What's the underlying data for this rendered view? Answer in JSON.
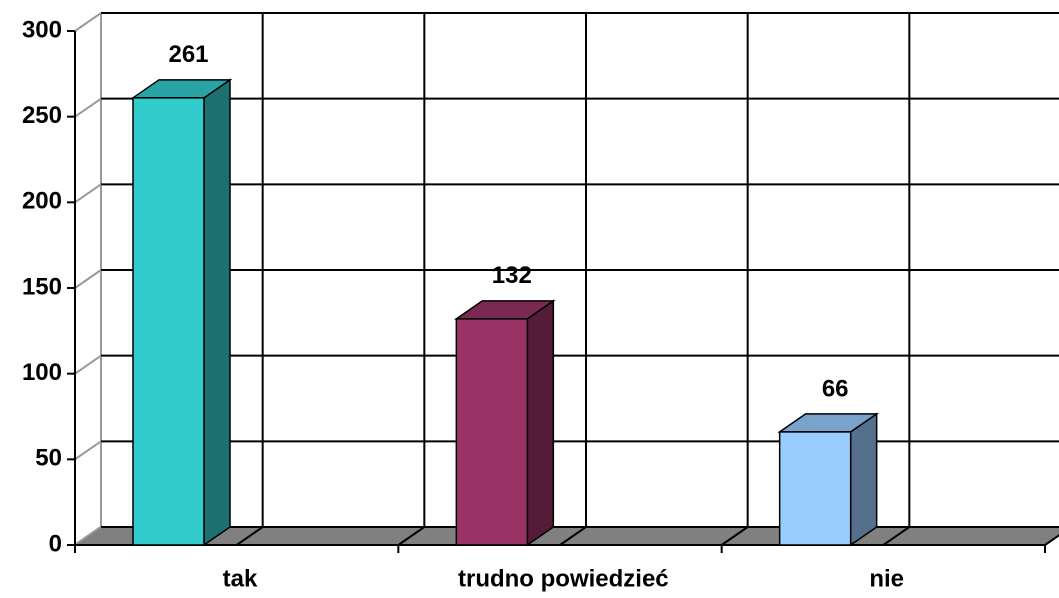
{
  "chart_data": {
    "type": "bar3d",
    "categories": [
      "tak",
      "trudno powiedzieć",
      "nie"
    ],
    "values": [
      261,
      132,
      66
    ],
    "colors": [
      "#33cccc",
      "#993366",
      "#99ccff"
    ],
    "ylim": [
      0,
      300
    ],
    "yticks": [
      0,
      50,
      100,
      150,
      200,
      250,
      300
    ],
    "grid": true
  }
}
